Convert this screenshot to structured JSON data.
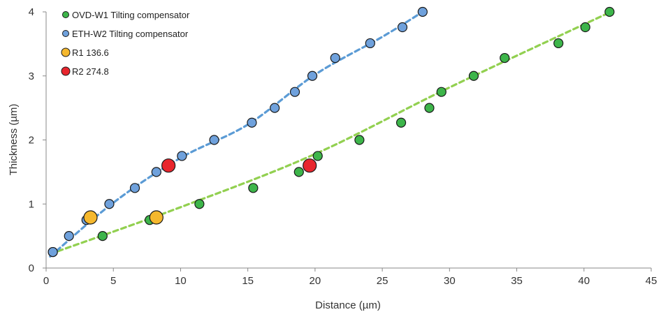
{
  "chart_data": {
    "type": "scatter",
    "title": "",
    "xlabel": "Distance (µm)",
    "ylabel": "Thickness (µm)",
    "xlim": [
      0,
      45
    ],
    "ylim": [
      0,
      4
    ],
    "xticks": [
      0,
      5,
      10,
      15,
      20,
      25,
      30,
      35,
      40,
      45
    ],
    "yticks": [
      0,
      1,
      2,
      3,
      4
    ],
    "grid": false,
    "legend_position": "top-left",
    "series": [
      {
        "name": "OVD-W1 Tilting compensator",
        "color": "#3DB54A",
        "marker": "circle",
        "points": [
          {
            "x": 0.5,
            "y": 0.25
          },
          {
            "x": 4.2,
            "y": 0.5
          },
          {
            "x": 7.7,
            "y": 0.75
          },
          {
            "x": 11.4,
            "y": 1.0
          },
          {
            "x": 15.4,
            "y": 1.25
          },
          {
            "x": 18.8,
            "y": 1.5
          },
          {
            "x": 20.2,
            "y": 1.75
          },
          {
            "x": 23.3,
            "y": 2.0
          },
          {
            "x": 26.4,
            "y": 2.27
          },
          {
            "x": 28.5,
            "y": 2.5
          },
          {
            "x": 29.4,
            "y": 2.75
          },
          {
            "x": 31.8,
            "y": 3.0
          },
          {
            "x": 34.1,
            "y": 3.28
          },
          {
            "x": 38.1,
            "y": 3.51
          },
          {
            "x": 40.1,
            "y": 3.76
          },
          {
            "x": 41.9,
            "y": 4.0
          }
        ],
        "trend": {
          "color": "#92D050",
          "x": [
            0.3,
            10,
            20,
            30,
            42
          ],
          "y": [
            0.22,
            0.95,
            1.78,
            2.82,
            4.0
          ]
        }
      },
      {
        "name": "ETH-W2 Tilting compensator",
        "color": "#6FA1DC",
        "marker": "circle",
        "points": [
          {
            "x": 0.5,
            "y": 0.25
          },
          {
            "x": 1.7,
            "y": 0.5
          },
          {
            "x": 3.0,
            "y": 0.75
          },
          {
            "x": 4.7,
            "y": 1.0
          },
          {
            "x": 6.6,
            "y": 1.25
          },
          {
            "x": 8.2,
            "y": 1.5
          },
          {
            "x": 10.1,
            "y": 1.75
          },
          {
            "x": 12.5,
            "y": 2.0
          },
          {
            "x": 15.3,
            "y": 2.27
          },
          {
            "x": 17.0,
            "y": 2.5
          },
          {
            "x": 18.5,
            "y": 2.75
          },
          {
            "x": 19.8,
            "y": 3.0
          },
          {
            "x": 21.5,
            "y": 3.28
          },
          {
            "x": 24.1,
            "y": 3.51
          },
          {
            "x": 26.5,
            "y": 3.76
          },
          {
            "x": 28.0,
            "y": 4.0
          }
        ],
        "trend": {
          "color": "#5B9BD5",
          "x": [
            0.3,
            5,
            10,
            15,
            20,
            25,
            28
          ],
          "y": [
            0.18,
            1.02,
            1.72,
            2.24,
            3.02,
            3.61,
            4.0
          ]
        }
      },
      {
        "name": "R1 136.6",
        "color": "#F5B82E",
        "marker": "large-circle",
        "points": [
          {
            "x": 3.3,
            "y": 0.79
          },
          {
            "x": 8.2,
            "y": 0.79
          }
        ]
      },
      {
        "name": "R2 274.8",
        "color": "#E8262E",
        "marker": "large-circle",
        "points": [
          {
            "x": 9.1,
            "y": 1.6
          },
          {
            "x": 19.6,
            "y": 1.6
          }
        ]
      }
    ]
  }
}
